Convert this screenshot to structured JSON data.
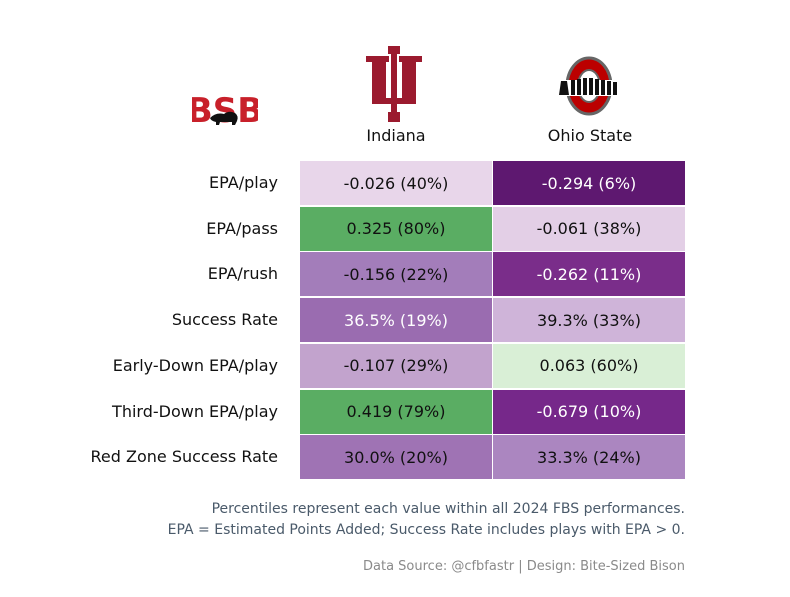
{
  "brand": {
    "text": "BSB"
  },
  "chart_data": {
    "type": "table",
    "columns": [
      "Indiana",
      "Ohio State"
    ],
    "rows": [
      {
        "label": "EPA/play",
        "cells": [
          {
            "text": "-0.026 (40%)",
            "value": -0.026,
            "percentile": 40,
            "bg": "#e8d6ea",
            "fg": "#111111"
          },
          {
            "text": "-0.294 (6%)",
            "value": -0.294,
            "percentile": 6,
            "bg": "#5e1870",
            "fg": "#ffffff"
          }
        ]
      },
      {
        "label": "EPA/pass",
        "cells": [
          {
            "text": "0.325 (80%)",
            "value": 0.325,
            "percentile": 80,
            "bg": "#5aad63",
            "fg": "#111111"
          },
          {
            "text": "-0.061 (38%)",
            "value": -0.061,
            "percentile": 38,
            "bg": "#e3cfe6",
            "fg": "#111111"
          }
        ]
      },
      {
        "label": "EPA/rush",
        "cells": [
          {
            "text": "-0.156 (22%)",
            "value": -0.156,
            "percentile": 22,
            "bg": "#a37dba",
            "fg": "#111111"
          },
          {
            "text": "-0.262 (11%)",
            "value": -0.262,
            "percentile": 11,
            "bg": "#7a2d8a",
            "fg": "#ffffff"
          }
        ]
      },
      {
        "label": "Success Rate",
        "cells": [
          {
            "text": "36.5% (19%)",
            "value": 36.5,
            "percentile": 19,
            "bg": "#9a6cb0",
            "fg": "#ffffff"
          },
          {
            "text": "39.3% (33%)",
            "value": 39.3,
            "percentile": 33,
            "bg": "#cfb4d9",
            "fg": "#111111"
          }
        ]
      },
      {
        "label": "Early-Down EPA/play",
        "cells": [
          {
            "text": "-0.107 (29%)",
            "value": -0.107,
            "percentile": 29,
            "bg": "#c2a3cd",
            "fg": "#111111"
          },
          {
            "text": "0.063 (60%)",
            "value": 0.063,
            "percentile": 60,
            "bg": "#d9efd6",
            "fg": "#111111"
          }
        ]
      },
      {
        "label": "Third-Down EPA/play",
        "cells": [
          {
            "text": "0.419 (79%)",
            "value": 0.419,
            "percentile": 79,
            "bg": "#5aad63",
            "fg": "#111111"
          },
          {
            "text": "-0.679 (10%)",
            "value": -0.679,
            "percentile": 10,
            "bg": "#76288a",
            "fg": "#ffffff"
          }
        ]
      },
      {
        "label": "Red Zone Success Rate",
        "cells": [
          {
            "text": "30.0% (20%)",
            "value": 30.0,
            "percentile": 20,
            "bg": "#9f73b4",
            "fg": "#111111"
          },
          {
            "text": "33.3% (24%)",
            "value": 33.3,
            "percentile": 24,
            "bg": "#ab86c0",
            "fg": "#111111"
          }
        ]
      }
    ]
  },
  "notes": {
    "line1": "Percentiles represent each value within all 2024 FBS performances.",
    "line2": "EPA = Estimated Points Added; Success Rate includes plays with EPA > 0."
  },
  "source": "Data Source: @cfbfastr | Design: Bite-Sized Bison",
  "colors": {
    "indiana_crimson": "#9b1a2e",
    "ohio_scarlet": "#bb0000",
    "bsb_red": "#c8202a"
  }
}
